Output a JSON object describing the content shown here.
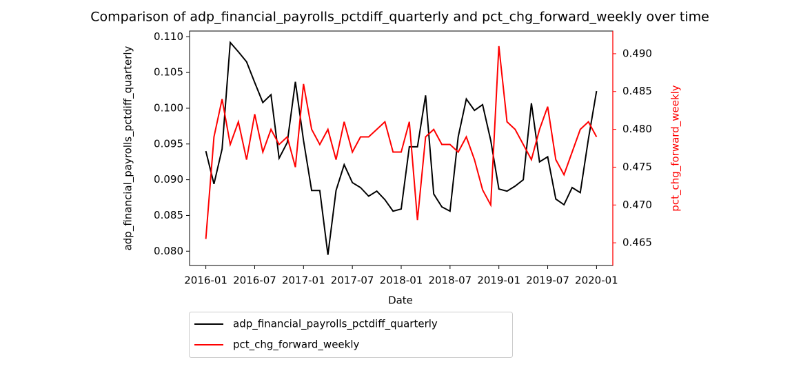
{
  "chart_data": {
    "type": "line",
    "title": "Comparison of adp_financial_payrolls_pctdiff_quarterly and pct_chg_forward_weekly over time",
    "x_label": "Date",
    "y_label": "adp_financial_payrolls_pctdiff_quarterly",
    "y2_label": "pct_chg_forward_weekly",
    "x": [
      "2016-01",
      "2016-02",
      "2016-03",
      "2016-04",
      "2016-05",
      "2016-06",
      "2016-07",
      "2016-08",
      "2016-09",
      "2016-10",
      "2016-11",
      "2016-12",
      "2017-01",
      "2017-02",
      "2017-03",
      "2017-04",
      "2017-05",
      "2017-06",
      "2017-07",
      "2017-08",
      "2017-09",
      "2017-10",
      "2017-11",
      "2017-12",
      "2018-01",
      "2018-02",
      "2018-03",
      "2018-04",
      "2018-05",
      "2018-06",
      "2018-07",
      "2018-08",
      "2018-09",
      "2018-10",
      "2018-11",
      "2018-12",
      "2019-01",
      "2019-02",
      "2019-03",
      "2019-04",
      "2019-05",
      "2019-06",
      "2019-07",
      "2019-08",
      "2019-09",
      "2019-10",
      "2019-11",
      "2019-12",
      "2020-01"
    ],
    "xlim": [
      "2015-11",
      "2020-03"
    ],
    "xticks": [
      "2016-01",
      "2016-07",
      "2017-01",
      "2017-07",
      "2018-01",
      "2018-07",
      "2019-01",
      "2019-07",
      "2020-01"
    ],
    "ylim": [
      0.078,
      0.1108
    ],
    "yticks": [
      {
        "value": 0.08,
        "label": "0.080"
      },
      0.085,
      {
        "value": 0.09,
        "label": "0.090"
      },
      0.095,
      {
        "value": 0.1,
        "label": "0.100"
      },
      0.105,
      {
        "value": 0.11,
        "label": "0.110"
      }
    ],
    "y2lim": [
      0.462,
      0.493
    ],
    "y2ticks": [
      0.465,
      {
        "value": 0.47,
        "label": "0.470"
      },
      0.475,
      {
        "value": 0.48,
        "label": "0.480"
      },
      0.485,
      {
        "value": 0.49,
        "label": "0.490"
      }
    ],
    "legend": "below",
    "series": [
      {
        "name": "adp_financial_payrolls_pctdiff_quarterly",
        "color": "#000000",
        "axis": "y",
        "values": [
          0.094,
          0.0894,
          0.0943,
          0.1092,
          0.1079,
          0.1065,
          0.1036,
          0.1008,
          0.1019,
          0.093,
          0.0952,
          0.1037,
          0.0955,
          0.0885,
          0.0885,
          0.0795,
          0.0885,
          0.0921,
          0.0896,
          0.0889,
          0.0877,
          0.0884,
          0.0872,
          0.0856,
          0.0859,
          0.0946,
          0.0946,
          0.1018,
          0.088,
          0.0862,
          0.0856,
          0.096,
          0.1013,
          0.0997,
          0.1005,
          0.0955,
          0.0887,
          0.0884,
          0.0891,
          0.09,
          0.1007,
          0.0925,
          0.0932,
          0.0873,
          0.0865,
          0.0889,
          0.0882,
          0.0957,
          0.1024
        ]
      },
      {
        "name": "pct_chg_forward_weekly",
        "color": "#ff0000",
        "axis": "y2",
        "values": [
          0.4655,
          0.479,
          0.484,
          0.478,
          0.481,
          0.476,
          0.482,
          0.477,
          0.48,
          0.478,
          0.479,
          0.475,
          0.486,
          0.48,
          0.478,
          0.48,
          0.476,
          0.481,
          0.477,
          0.479,
          0.479,
          0.48,
          0.481,
          0.477,
          0.477,
          0.481,
          0.468,
          0.479,
          0.48,
          0.478,
          0.478,
          0.477,
          0.479,
          0.476,
          0.472,
          0.47,
          0.491,
          0.481,
          0.48,
          0.478,
          0.476,
          0.48,
          0.483,
          0.476,
          0.474,
          0.477,
          0.48,
          0.481,
          0.479
        ]
      }
    ]
  }
}
